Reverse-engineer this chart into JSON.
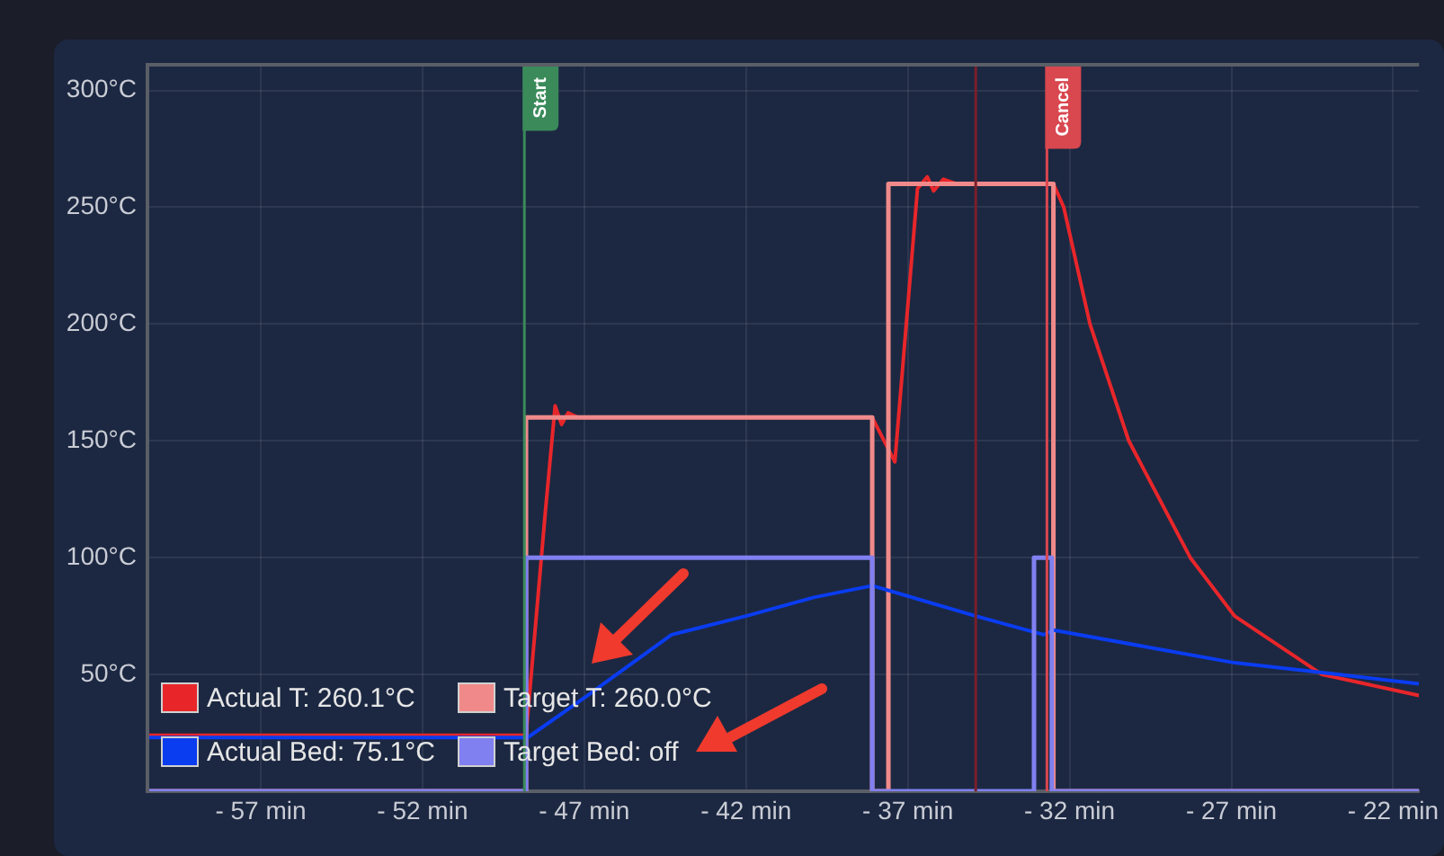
{
  "chart_data": {
    "type": "line",
    "series": [
      {
        "name": "Actual T: 260.1°C",
        "color": "#e8262a",
        "x": [
          -60.5,
          -48.8,
          -48.2,
          -47.9,
          -47.7,
          -47.5,
          -47.2,
          -38.1,
          -37.4,
          -36.7,
          -36.4,
          -36.2,
          -35.9,
          -35.5,
          -32.5,
          -32.18,
          -31.37,
          -30.17,
          -28.27,
          -26.9,
          -24.2,
          -21.2
        ],
        "values": [
          24,
          24,
          120,
          165,
          157,
          162,
          160,
          160,
          141,
          258,
          263,
          257,
          262,
          260,
          260,
          250,
          200,
          150,
          100,
          75,
          50,
          41
        ]
      },
      {
        "name": "Target T: 260.0°C",
        "color": "#f08a8a",
        "x": [
          -60.5,
          -48.8,
          -48.8,
          -38.1,
          -38.1,
          -37.6,
          -37.6,
          -32.5,
          -32.5,
          -21.2
        ],
        "values": [
          0,
          0,
          160,
          160,
          0,
          0,
          260,
          260,
          0,
          0
        ]
      },
      {
        "name": "Actual Bed: 75.1°C",
        "color": "#0a3cf0",
        "x": [
          -60.5,
          -48.75,
          -47,
          -44.3,
          -42,
          -39.9,
          -38.1,
          -34.9,
          -32.8,
          -32.5,
          -29.7,
          -26.9,
          -23.7,
          -21.2
        ],
        "values": [
          23,
          23,
          40,
          67,
          75,
          83,
          88,
          75,
          67,
          69,
          62,
          55,
          50,
          46
        ]
      },
      {
        "name": "Target Bed: off",
        "color": "#8080f0",
        "x": [
          -60.5,
          -48.8,
          -48.8,
          -38.1,
          -38.1,
          -33.1,
          -33.1,
          -32.55,
          -32.55,
          -21.2
        ],
        "values": [
          0,
          0,
          100,
          100,
          0,
          0,
          100,
          100,
          0,
          0
        ]
      }
    ],
    "xlim": [
      -60.5,
      -21.2
    ],
    "xticks": [
      {
        "value": -57,
        "label": "- 57 min"
      },
      {
        "value": -52,
        "label": "- 52 min"
      },
      {
        "value": -47,
        "label": "- 47 min"
      },
      {
        "value": -42,
        "label": "- 42 min"
      },
      {
        "value": -37,
        "label": "- 37 min"
      },
      {
        "value": -32,
        "label": "- 32 min"
      },
      {
        "value": -27,
        "label": "- 27 min"
      },
      {
        "value": -22,
        "label": "- 22 min"
      }
    ],
    "ylim": [
      0,
      311
    ],
    "yticks": [
      {
        "value": 50,
        "label": "50°C"
      },
      {
        "value": 100,
        "label": "100°C"
      },
      {
        "value": 150,
        "label": "150°C"
      },
      {
        "value": 200,
        "label": "200°C"
      },
      {
        "value": 250,
        "label": "250°C"
      },
      {
        "value": 300,
        "label": "300°C"
      }
    ],
    "ref_lines": [
      {
        "axis": "x",
        "value": -48.85,
        "label": "Start",
        "color": "#3a8a5a"
      },
      {
        "axis": "x",
        "value": -34.9,
        "label": null,
        "color": "#7a1f2a"
      },
      {
        "axis": "x",
        "value": -32.7,
        "label": "Cancel",
        "color": "#d9474f"
      }
    ],
    "grid": true,
    "legend": "bottom left",
    "marker": "none",
    "line_style": "solid"
  }
}
